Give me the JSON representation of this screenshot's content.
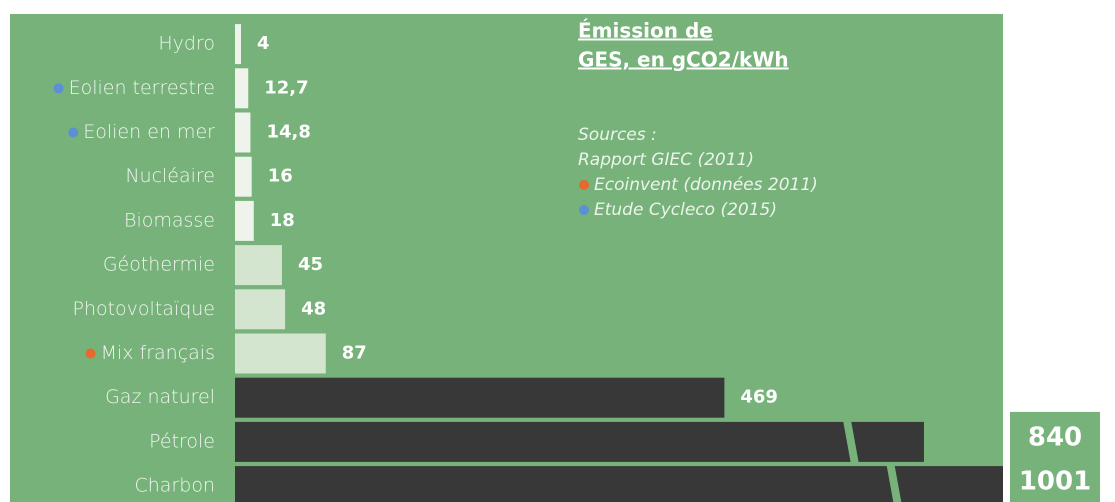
{
  "chart_data": {
    "type": "bar",
    "orientation": "horizontal",
    "title_lines": [
      "Émission de",
      "GES, en gCO2/kWh"
    ],
    "sources_heading": "Sources :",
    "sources": [
      {
        "text": "Rapport GIEC (2011)",
        "color": null
      },
      {
        "text": "Ecoinvent (données 2011)",
        "color": "#e8692d"
      },
      {
        "text": "Etude Cycleco (2015)",
        "color": "#5b8fd6"
      }
    ],
    "categories": [
      "Hydro",
      "Eolien terrestre",
      "Eolien en mer",
      "Nucléaire",
      "Biomasse",
      "Géothermie",
      "Photovoltaïque",
      "Mix français",
      "Gaz naturel",
      "Pétrole",
      "Charbon"
    ],
    "category_markers": [
      null,
      "#5b8fd6",
      "#5b8fd6",
      null,
      null,
      null,
      null,
      "#e8692d",
      null,
      null,
      null
    ],
    "values": [
      4,
      12.7,
      14.8,
      16,
      18,
      45,
      48,
      87,
      469,
      840,
      1001
    ],
    "value_labels": [
      "4",
      "12,7",
      "14,8",
      "16",
      "18",
      "45",
      "48",
      "87",
      "469",
      "840",
      "1001"
    ],
    "colors": [
      "#eef3ec",
      "#eef3ec",
      "#eef3ec",
      "#eef3ec",
      "#eef3ec",
      "#d3e5cf",
      "#d3e5cf",
      "#d3e5cf",
      "#383838",
      "#383838",
      "#383838"
    ],
    "background": "#76b27a",
    "xlim": [
      0,
      1001
    ],
    "axis_break": true
  }
}
